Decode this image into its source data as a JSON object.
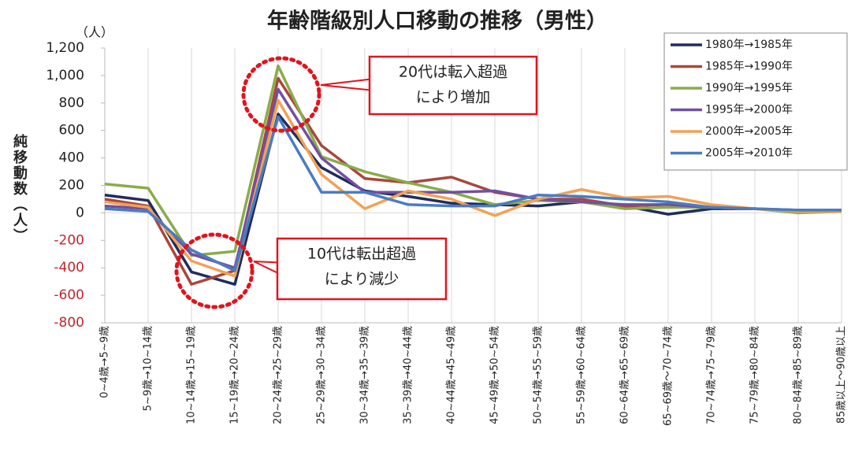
{
  "chart_data": {
    "type": "line",
    "title": "年齢階級別人口移動の推移（男性）",
    "unit_label": "（人）",
    "y_axis_label": "純移動数（人）",
    "categories": [
      "0~4歳→5~9歳",
      "5~9歳→10~14歳",
      "10~14歳→15~19歳",
      "15~19歳→20~24歳",
      "20~24歳→25~29歳",
      "25~29歳→30~34歳",
      "30~34歳→35~39歳",
      "35~39歳→40~44歳",
      "40~44歳→45~49歳",
      "45~49歳→50~54歳",
      "50~54歳→55~59歳",
      "55~59歳→60~64歳",
      "60~64歳→65~69歳",
      "65~69歳～70~74歳",
      "70~74歳→75~79歳",
      "75~79歳→80~84歳",
      "80~84歳→85~89歳",
      "85歳以上～90歳以上"
    ],
    "series": [
      {
        "name": "1980年→1985年",
        "color": "#1f2d5c",
        "values": [
          130,
          90,
          -430,
          -520,
          720,
          330,
          160,
          120,
          70,
          60,
          50,
          80,
          50,
          -10,
          30,
          30,
          10,
          20
        ]
      },
      {
        "name": "1985年→1990年",
        "color": "#a9473d",
        "values": [
          100,
          50,
          -520,
          -420,
          980,
          490,
          250,
          220,
          260,
          150,
          100,
          100,
          50,
          60,
          40,
          30,
          10,
          10
        ]
      },
      {
        "name": "1990年→1995年",
        "color": "#8aac4a",
        "values": [
          210,
          180,
          -310,
          -280,
          1070,
          410,
          300,
          220,
          150,
          60,
          90,
          80,
          30,
          40,
          40,
          30,
          0,
          10
        ]
      },
      {
        "name": "1995年→2000年",
        "color": "#7150a2",
        "values": [
          50,
          30,
          -300,
          -400,
          900,
          400,
          150,
          150,
          150,
          160,
          100,
          80,
          60,
          60,
          40,
          30,
          20,
          20
        ]
      },
      {
        "name": "2000年→2005年",
        "color": "#f2a254",
        "values": [
          80,
          40,
          -350,
          -460,
          820,
          280,
          30,
          160,
          100,
          -20,
          100,
          170,
          110,
          120,
          60,
          30,
          10,
          10
        ]
      },
      {
        "name": "2005年→2010年",
        "color": "#4a7cc2",
        "values": [
          30,
          10,
          -270,
          -420,
          700,
          150,
          150,
          60,
          50,
          50,
          130,
          120,
          100,
          80,
          40,
          30,
          20,
          20
        ]
      }
    ],
    "ylim": [
      -800,
      1200
    ],
    "yticks": [
      {
        "value": 1200,
        "label": "1,200"
      },
      {
        "value": 1000,
        "label": "1,000"
      },
      800,
      600,
      400,
      200,
      0,
      -200,
      -400,
      -600,
      -800
    ],
    "negative_tick_color": "#c0262c",
    "grid": "x",
    "legend": "top-right",
    "annotations": [
      {
        "lines": [
          "20代は転入超過",
          "により増加"
        ],
        "category": 4,
        "value": 900
      },
      {
        "lines": [
          "10代は転出超過",
          "により減少"
        ],
        "category": 3,
        "value": -400
      }
    ]
  }
}
